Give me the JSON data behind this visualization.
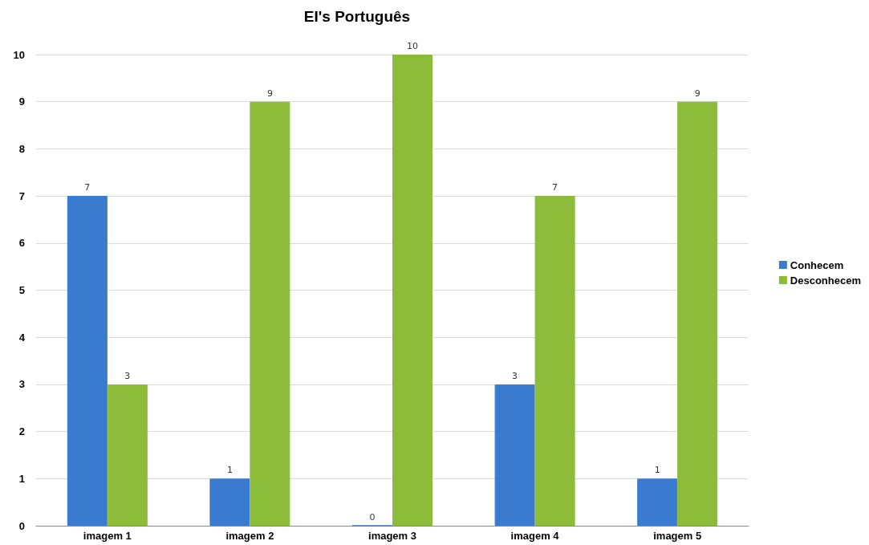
{
  "chart_data": {
    "type": "bar",
    "title": "EI's Português",
    "categories": [
      "imagem 1",
      "imagem 2",
      "imagem 3",
      "imagem 4",
      "imagem 5"
    ],
    "series": [
      {
        "name": "Conhecem",
        "color": "#3a7bd0",
        "values": [
          7,
          1,
          0,
          3,
          1
        ]
      },
      {
        "name": "Desconhecem",
        "color": "#8cbc3a",
        "values": [
          3,
          9,
          10,
          7,
          9
        ]
      }
    ],
    "ylim": [
      0,
      10
    ],
    "yticks": [
      0,
      1,
      2,
      3,
      4,
      5,
      6,
      7,
      8,
      9,
      10
    ],
    "grid": "y",
    "legend": "right",
    "data_labels": true
  }
}
